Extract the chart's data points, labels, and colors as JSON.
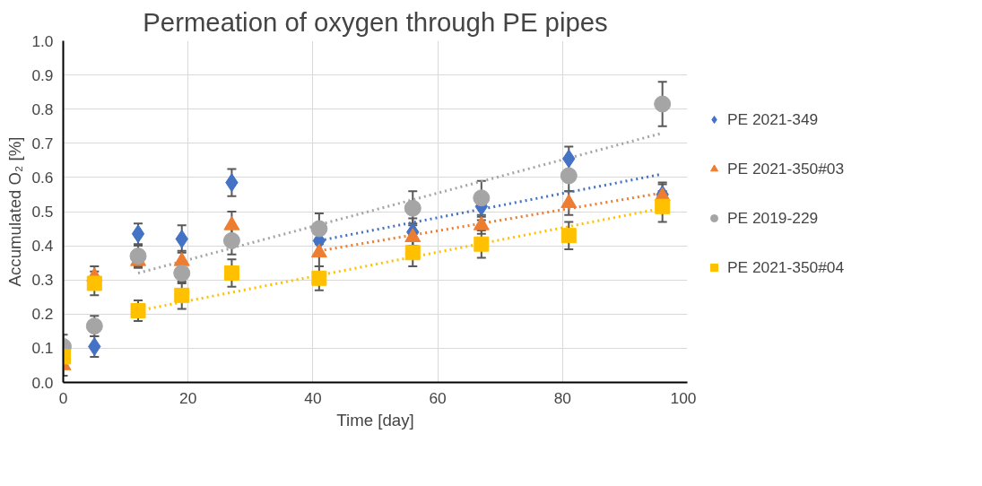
{
  "chart_data": {
    "type": "scatter",
    "title": "Permeation of oxygen through PE pipes",
    "xlabel": "Time [day]",
    "ylabel": "Accumulated O₂ [%]",
    "x": [
      0,
      5,
      12,
      19,
      27,
      41,
      56,
      67,
      81,
      96
    ],
    "series": [
      {
        "name": "PE 2021-349",
        "color": "#4472c4",
        "marker": "diamond",
        "values": [
          null,
          0.105,
          0.435,
          0.42,
          0.585,
          0.415,
          0.44,
          0.515,
          0.655,
          0.55
        ],
        "errors": [
          null,
          0.03,
          0.03,
          0.04,
          0.04,
          0.04,
          0.04,
          0.04,
          0.035,
          0.035
        ]
      },
      {
        "name": "PE 2021-350#03",
        "color": "#ed7d31",
        "marker": "triangle",
        "values": [
          0.05,
          0.31,
          0.355,
          0.355,
          0.46,
          0.38,
          0.425,
          0.46,
          0.525,
          0.545
        ],
        "errors": [
          0.03,
          0.03,
          0.02,
          0.03,
          0.04,
          0.04,
          0.04,
          0.025,
          0.035,
          0.035
        ]
      },
      {
        "name": "PE 2019-229",
        "color": "#a5a5a5",
        "marker": "circle",
        "values": [
          0.105,
          0.165,
          0.37,
          0.32,
          0.415,
          0.45,
          0.51,
          0.54,
          0.605,
          0.815
        ],
        "errors": [
          0.035,
          0.03,
          0.03,
          0.03,
          0.04,
          0.045,
          0.05,
          0.05,
          0.045,
          0.065
        ]
      },
      {
        "name": "PE 2021-350#04",
        "color": "#ffc000",
        "marker": "square",
        "values": [
          0.075,
          0.29,
          0.21,
          0.255,
          0.32,
          0.305,
          0.38,
          0.405,
          0.43,
          0.515
        ],
        "errors": [
          0.03,
          0.035,
          0.03,
          0.04,
          0.04,
          0.035,
          0.04,
          0.04,
          0.04,
          0.045
        ]
      },
      {
        "type": "line",
        "line_style": "dotted",
        "color": "#4472c4",
        "x": [
          41,
          96
        ],
        "values": [
          0.415,
          0.61
        ]
      },
      {
        "type": "line",
        "line_style": "dotted",
        "color": "#ed7d31",
        "x": [
          41,
          96
        ],
        "values": [
          0.385,
          0.555
        ]
      },
      {
        "type": "line",
        "line_style": "dotted",
        "color": "#a5a5a5",
        "x": [
          12,
          96
        ],
        "values": [
          0.32,
          0.73
        ]
      },
      {
        "type": "line",
        "line_style": "dotted",
        "color": "#ffc000",
        "x": [
          12,
          96
        ],
        "values": [
          0.21,
          0.51
        ]
      }
    ],
    "xlim": [
      0,
      100
    ],
    "xticks": [
      0,
      20,
      40,
      60,
      80,
      100
    ],
    "ylim": [
      0,
      1
    ],
    "yticks": [
      {
        "value": 0,
        "label": "0.0"
      },
      {
        "value": 0.1,
        "label": "0.1"
      },
      {
        "value": 0.2,
        "label": "0.2"
      },
      {
        "value": 0.3,
        "label": "0.3"
      },
      {
        "value": 0.4,
        "label": "0.4"
      },
      {
        "value": 0.5,
        "label": "0.5"
      },
      {
        "value": 0.6,
        "label": "0.6"
      },
      {
        "value": 0.7,
        "label": "0.7"
      },
      {
        "value": 0.8,
        "label": "0.8"
      },
      {
        "value": 0.9,
        "label": "0.9"
      },
      {
        "value": 1,
        "label": "1.0"
      }
    ],
    "grid": true,
    "legend": "right"
  }
}
